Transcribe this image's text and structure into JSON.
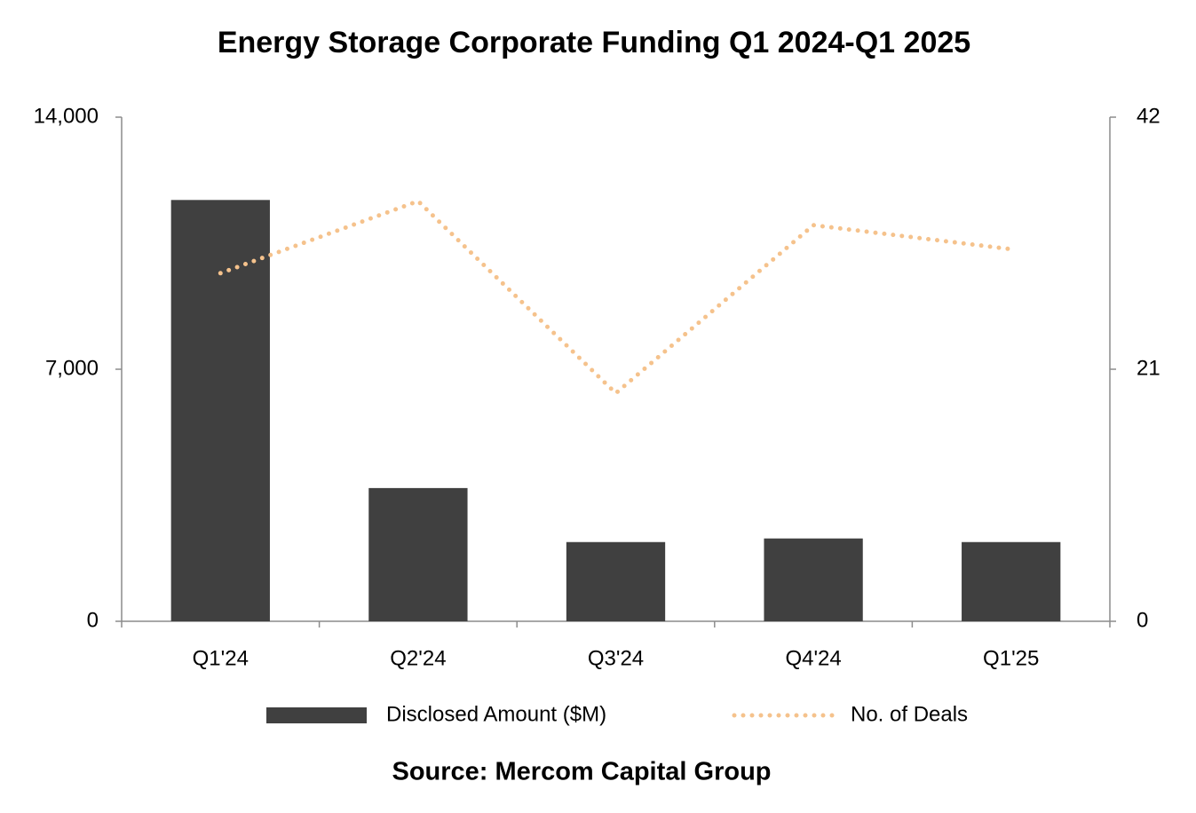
{
  "chart_data": {
    "type": "bar",
    "title": "Energy Storage Corporate Funding Q1 2024-Q1 2025",
    "source": "Source: Mercom Capital Group",
    "categories": [
      "Q1'24",
      "Q2'24",
      "Q3'24",
      "Q4'24",
      "Q1'25"
    ],
    "series": [
      {
        "name": "Disclosed Amount ($M)",
        "type": "bar",
        "color": "#404040",
        "values": [
          11700,
          3700,
          2200,
          2300,
          2200
        ]
      },
      {
        "name": "No. of Deals",
        "type": "line",
        "axis": "y2",
        "color": "#f5c28c",
        "values": [
          29,
          35,
          19,
          33,
          31
        ]
      }
    ],
    "ylim": [
      0,
      14000
    ],
    "yticks": [
      0,
      {
        "value": 7000,
        "label": "7,000"
      },
      {
        "value": 14000,
        "label": "14,000"
      }
    ],
    "y2lim": [
      0,
      42
    ],
    "y2ticks": [
      0,
      21,
      42
    ],
    "grid": false,
    "legend": "bottom"
  }
}
